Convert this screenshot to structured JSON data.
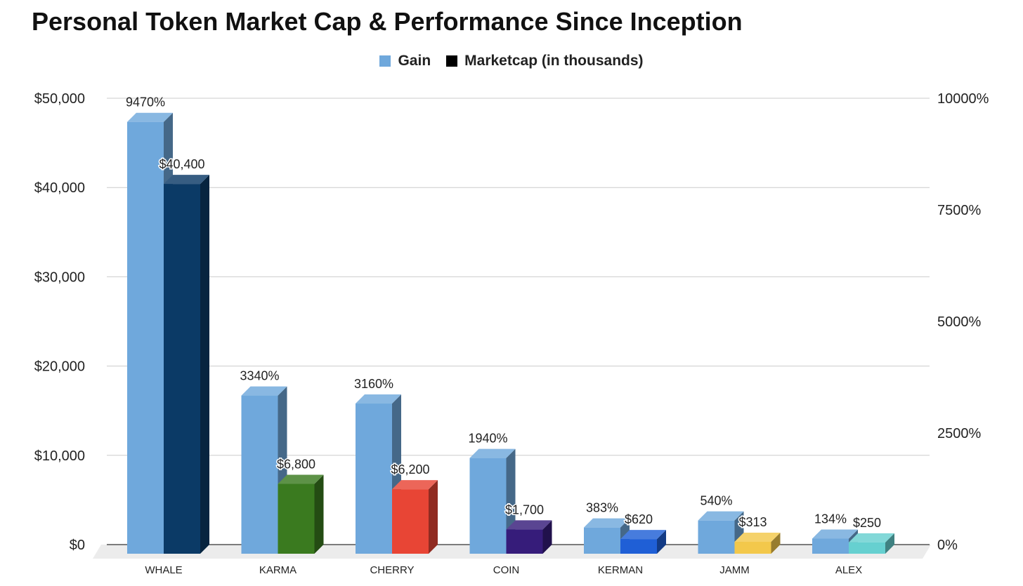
{
  "chart_data": {
    "type": "bar",
    "title": "Personal Token Market Cap & Performance Since Inception",
    "categories": [
      "WHALE",
      "KARMA",
      "CHERRY",
      "COIN",
      "KERMAN",
      "JAMM",
      "ALEX"
    ],
    "series": [
      {
        "name": "Gain",
        "axis": "right",
        "unit": "%",
        "values": [
          9470,
          3340,
          3160,
          1940,
          383,
          540,
          134
        ],
        "labels": [
          "9470%",
          "3340%",
          "3160%",
          "1940%",
          "383%",
          "540%",
          "134%"
        ],
        "color": "#6fa8dc"
      },
      {
        "name": "Marketcap (in thousands)",
        "axis": "left",
        "unit": "$",
        "values": [
          40400,
          6800,
          6200,
          1700,
          620,
          313,
          250
        ],
        "labels": [
          "$40,400",
          "$6,800",
          "$6,200",
          "$1,700",
          "$620",
          "$313",
          "$250"
        ],
        "colors": [
          "#0b3a66",
          "#3a7a1f",
          "#e84535",
          "#361c7a",
          "#1f5fd6",
          "#f3c84b",
          "#66d0d0"
        ]
      }
    ],
    "yleft": {
      "ylim": [
        0,
        50000
      ],
      "ticks": [
        "$0",
        "$10,000",
        "$20,000",
        "$30,000",
        "$40,000",
        "$50,000"
      ]
    },
    "yright": {
      "ylim": [
        0,
        10000
      ],
      "ticks": [
        "0%",
        "2500%",
        "5000%",
        "7500%",
        "10000%"
      ]
    },
    "legend_position": "top-center",
    "grid": true,
    "style": "3d"
  }
}
